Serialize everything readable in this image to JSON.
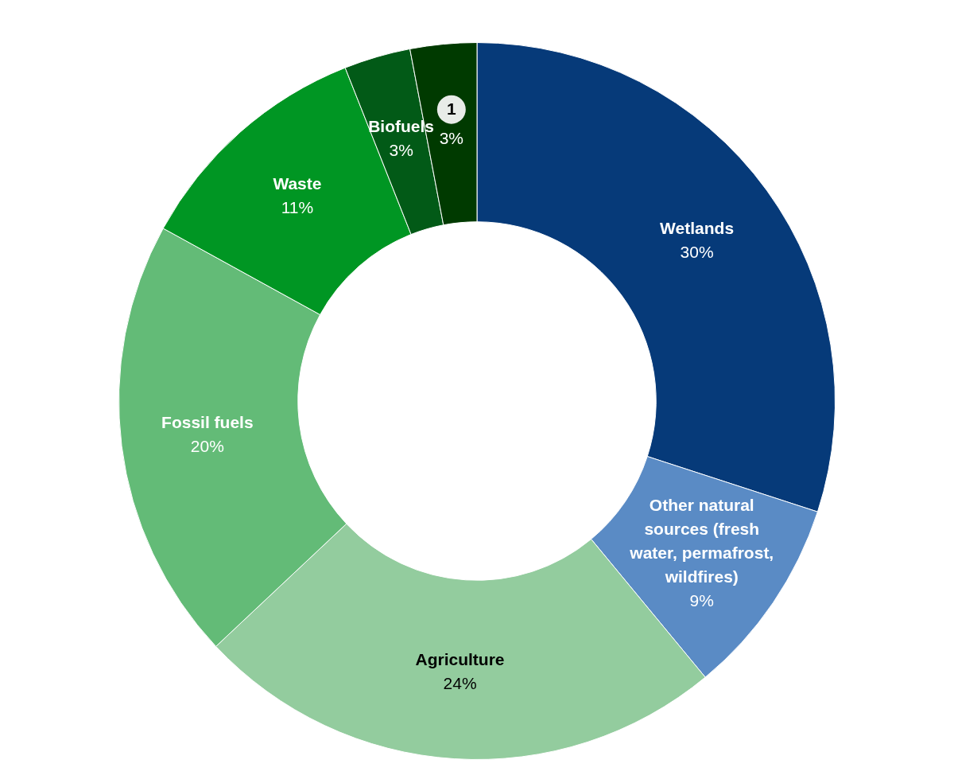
{
  "chart_data": {
    "type": "donut",
    "categories": [
      "Wetlands",
      "Other natural sources (fresh water, permafrost, wildfires)",
      "Agriculture",
      "Fossil fuels",
      "Waste",
      "Biofuels",
      "1"
    ],
    "values": [
      30,
      9,
      24,
      20,
      11,
      3,
      3
    ],
    "value_labels": [
      "30%",
      "9%",
      "24%",
      "20%",
      "11%",
      "3%",
      "3%"
    ],
    "colors": [
      "#063a79",
      "#5a8bc5",
      "#93cc9e",
      "#63bb77",
      "#009623",
      "#025a17",
      "#003a00"
    ],
    "legend": false
  }
}
